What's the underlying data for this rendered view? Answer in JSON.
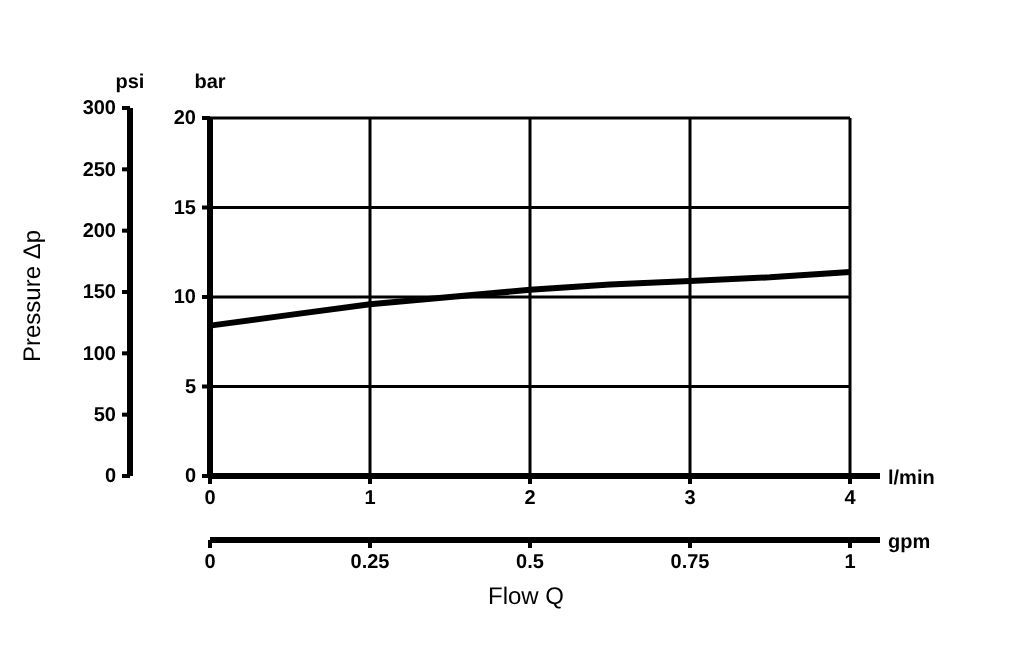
{
  "chart_data": {
    "type": "line",
    "y2label": "Pressure Δp",
    "xlabel": "Flow Q",
    "annotations": [
      "psi",
      "bar",
      "l/min",
      "gpm"
    ],
    "series": [
      {
        "color": "#000000",
        "x": [
          0,
          0.5,
          1,
          1.5,
          2,
          2.5,
          3,
          3.5,
          4
        ],
        "values": [
          8.4,
          9.0,
          9.6,
          10.0,
          10.4,
          10.7,
          10.9,
          11.1,
          11.4
        ]
      }
    ],
    "xlim": [
      0,
      4
    ],
    "xticks": [
      0,
      1,
      2,
      3,
      4
    ],
    "x2lim": [
      0,
      1
    ],
    "x2ticks": [
      0,
      0.25,
      0.5,
      0.75,
      1
    ],
    "ylim": [
      0,
      20
    ],
    "yticks": [
      0,
      5,
      10,
      15,
      20
    ],
    "y2lim": [
      0,
      300
    ],
    "y2ticks": [
      0,
      50,
      100,
      150,
      200,
      250,
      300
    ],
    "grid": true,
    "marker": "none",
    "line_style": "solid"
  }
}
